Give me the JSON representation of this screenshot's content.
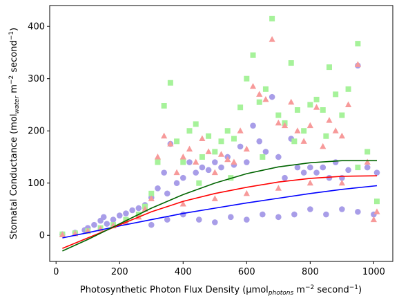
{
  "chart_data": {
    "type": "scatter",
    "xlabel": {
      "main": "Photosynthetic Photon Flux Density (μmol",
      "sub": "photons",
      "mid": " m",
      "sup": "−2",
      "tail": " second",
      "sup2": "−1",
      "end": ")"
    },
    "ylabel": {
      "main": "Stomatal Conductance (mol",
      "sub": "water",
      "mid": " m",
      "sup": "−2",
      "tail": " second",
      "sup2": "−1",
      "end": ")"
    },
    "xlim": [
      -20,
      1060
    ],
    "ylim": [
      -50,
      440
    ],
    "xticks": [
      "0",
      "200",
      "400",
      "600",
      "800",
      "1000"
    ],
    "xtick_values": [
      0,
      200,
      400,
      600,
      800,
      1000
    ],
    "yticks": [
      "0",
      "100",
      "200",
      "300",
      "400"
    ],
    "ytick_values": [
      0,
      100,
      200,
      300,
      400
    ],
    "grid": false,
    "series": [
      {
        "marker": "circle",
        "color": "#a89de8",
        "points": [
          [
            20,
            2
          ],
          [
            60,
            5
          ],
          [
            90,
            10
          ],
          [
            100,
            14
          ],
          [
            120,
            20
          ],
          [
            140,
            28
          ],
          [
            150,
            35
          ],
          [
            160,
            22
          ],
          [
            180,
            30
          ],
          [
            200,
            38
          ],
          [
            220,
            42
          ],
          [
            240,
            48
          ],
          [
            260,
            52
          ],
          [
            280,
            58
          ],
          [
            300,
            72
          ],
          [
            320,
            90
          ],
          [
            340,
            120
          ],
          [
            350,
            80
          ],
          [
            360,
            175
          ],
          [
            380,
            100
          ],
          [
            400,
            110
          ],
          [
            420,
            140
          ],
          [
            440,
            120
          ],
          [
            460,
            130
          ],
          [
            480,
            125
          ],
          [
            500,
            140
          ],
          [
            520,
            130
          ],
          [
            540,
            150
          ],
          [
            560,
            135
          ],
          [
            580,
            170
          ],
          [
            600,
            140
          ],
          [
            620,
            210
          ],
          [
            640,
            180
          ],
          [
            660,
            160
          ],
          [
            680,
            265
          ],
          [
            700,
            150
          ],
          [
            720,
            110
          ],
          [
            740,
            185
          ],
          [
            760,
            130
          ],
          [
            780,
            120
          ],
          [
            800,
            130
          ],
          [
            820,
            120
          ],
          [
            840,
            130
          ],
          [
            860,
            110
          ],
          [
            880,
            140
          ],
          [
            900,
            110
          ],
          [
            920,
            125
          ],
          [
            950,
            325
          ],
          [
            980,
            130
          ],
          [
            1010,
            120
          ],
          [
            300,
            20
          ],
          [
            350,
            30
          ],
          [
            400,
            40
          ],
          [
            450,
            30
          ],
          [
            500,
            25
          ],
          [
            550,
            35
          ],
          [
            600,
            30
          ],
          [
            650,
            40
          ],
          [
            700,
            35
          ],
          [
            750,
            40
          ],
          [
            800,
            50
          ],
          [
            850,
            40
          ],
          [
            900,
            50
          ],
          [
            950,
            45
          ],
          [
            1000,
            40
          ]
        ]
      },
      {
        "marker": "square",
        "color": "#a6f29a",
        "points": [
          [
            20,
            2
          ],
          [
            60,
            4
          ],
          [
            100,
            8
          ],
          [
            140,
            14
          ],
          [
            180,
            20
          ],
          [
            220,
            30
          ],
          [
            260,
            40
          ],
          [
            280,
            55
          ],
          [
            300,
            80
          ],
          [
            320,
            140
          ],
          [
            340,
            248
          ],
          [
            360,
            292
          ],
          [
            380,
            180
          ],
          [
            400,
            140
          ],
          [
            420,
            200
          ],
          [
            440,
            213
          ],
          [
            460,
            150
          ],
          [
            480,
            190
          ],
          [
            500,
            160
          ],
          [
            520,
            180
          ],
          [
            540,
            200
          ],
          [
            560,
            185
          ],
          [
            580,
            245
          ],
          [
            600,
            300
          ],
          [
            620,
            345
          ],
          [
            640,
            255
          ],
          [
            660,
            280
          ],
          [
            680,
            415
          ],
          [
            700,
            230
          ],
          [
            720,
            215
          ],
          [
            740,
            330
          ],
          [
            760,
            240
          ],
          [
            780,
            200
          ],
          [
            800,
            250
          ],
          [
            820,
            260
          ],
          [
            840,
            240
          ],
          [
            860,
            322
          ],
          [
            880,
            270
          ],
          [
            900,
            230
          ],
          [
            920,
            280
          ],
          [
            950,
            367
          ],
          [
            980,
            160
          ],
          [
            1010,
            65
          ],
          [
            450,
            100
          ],
          [
            550,
            110
          ],
          [
            650,
            150
          ],
          [
            750,
            180
          ],
          [
            850,
            190
          ],
          [
            950,
            130
          ]
        ]
      },
      {
        "marker": "triangle",
        "color": "#f79a9a",
        "points": [
          [
            20,
            1
          ],
          [
            60,
            3
          ],
          [
            100,
            8
          ],
          [
            140,
            12
          ],
          [
            180,
            18
          ],
          [
            220,
            25
          ],
          [
            260,
            35
          ],
          [
            280,
            50
          ],
          [
            300,
            70
          ],
          [
            320,
            150
          ],
          [
            340,
            190
          ],
          [
            360,
            175
          ],
          [
            380,
            120
          ],
          [
            400,
            150
          ],
          [
            420,
            165
          ],
          [
            440,
            140
          ],
          [
            460,
            185
          ],
          [
            480,
            160
          ],
          [
            500,
            120
          ],
          [
            520,
            155
          ],
          [
            540,
            145
          ],
          [
            560,
            140
          ],
          [
            580,
            200
          ],
          [
            600,
            165
          ],
          [
            620,
            285
          ],
          [
            640,
            270
          ],
          [
            660,
            260
          ],
          [
            680,
            375
          ],
          [
            700,
            215
          ],
          [
            720,
            210
          ],
          [
            740,
            255
          ],
          [
            760,
            200
          ],
          [
            780,
            180
          ],
          [
            800,
            210
          ],
          [
            820,
            245
          ],
          [
            840,
            170
          ],
          [
            860,
            220
          ],
          [
            880,
            200
          ],
          [
            900,
            190
          ],
          [
            920,
            250
          ],
          [
            950,
            327
          ],
          [
            980,
            140
          ],
          [
            1010,
            45
          ],
          [
            400,
            60
          ],
          [
            500,
            70
          ],
          [
            600,
            80
          ],
          [
            700,
            90
          ],
          [
            800,
            100
          ],
          [
            900,
            100
          ],
          [
            1000,
            30
          ]
        ]
      }
    ],
    "fits": [
      {
        "color": "#0000ff",
        "points": [
          [
            20,
            -5
          ],
          [
            100,
            5
          ],
          [
            200,
            18
          ],
          [
            300,
            30
          ],
          [
            400,
            42
          ],
          [
            500,
            52
          ],
          [
            600,
            62
          ],
          [
            700,
            71
          ],
          [
            800,
            80
          ],
          [
            900,
            88
          ],
          [
            1010,
            95
          ]
        ]
      },
      {
        "color": "#ff0000",
        "points": [
          [
            20,
            -25
          ],
          [
            100,
            -5
          ],
          [
            200,
            20
          ],
          [
            300,
            45
          ],
          [
            400,
            65
          ],
          [
            500,
            80
          ],
          [
            600,
            92
          ],
          [
            700,
            102
          ],
          [
            800,
            109
          ],
          [
            900,
            113
          ],
          [
            1010,
            114
          ]
        ]
      },
      {
        "color": "#006400",
        "points": [
          [
            20,
            -30
          ],
          [
            100,
            -8
          ],
          [
            200,
            22
          ],
          [
            300,
            52
          ],
          [
            400,
            78
          ],
          [
            500,
            100
          ],
          [
            600,
            118
          ],
          [
            700,
            131
          ],
          [
            800,
            139
          ],
          [
            900,
            143
          ],
          [
            1010,
            143
          ]
        ]
      }
    ]
  }
}
